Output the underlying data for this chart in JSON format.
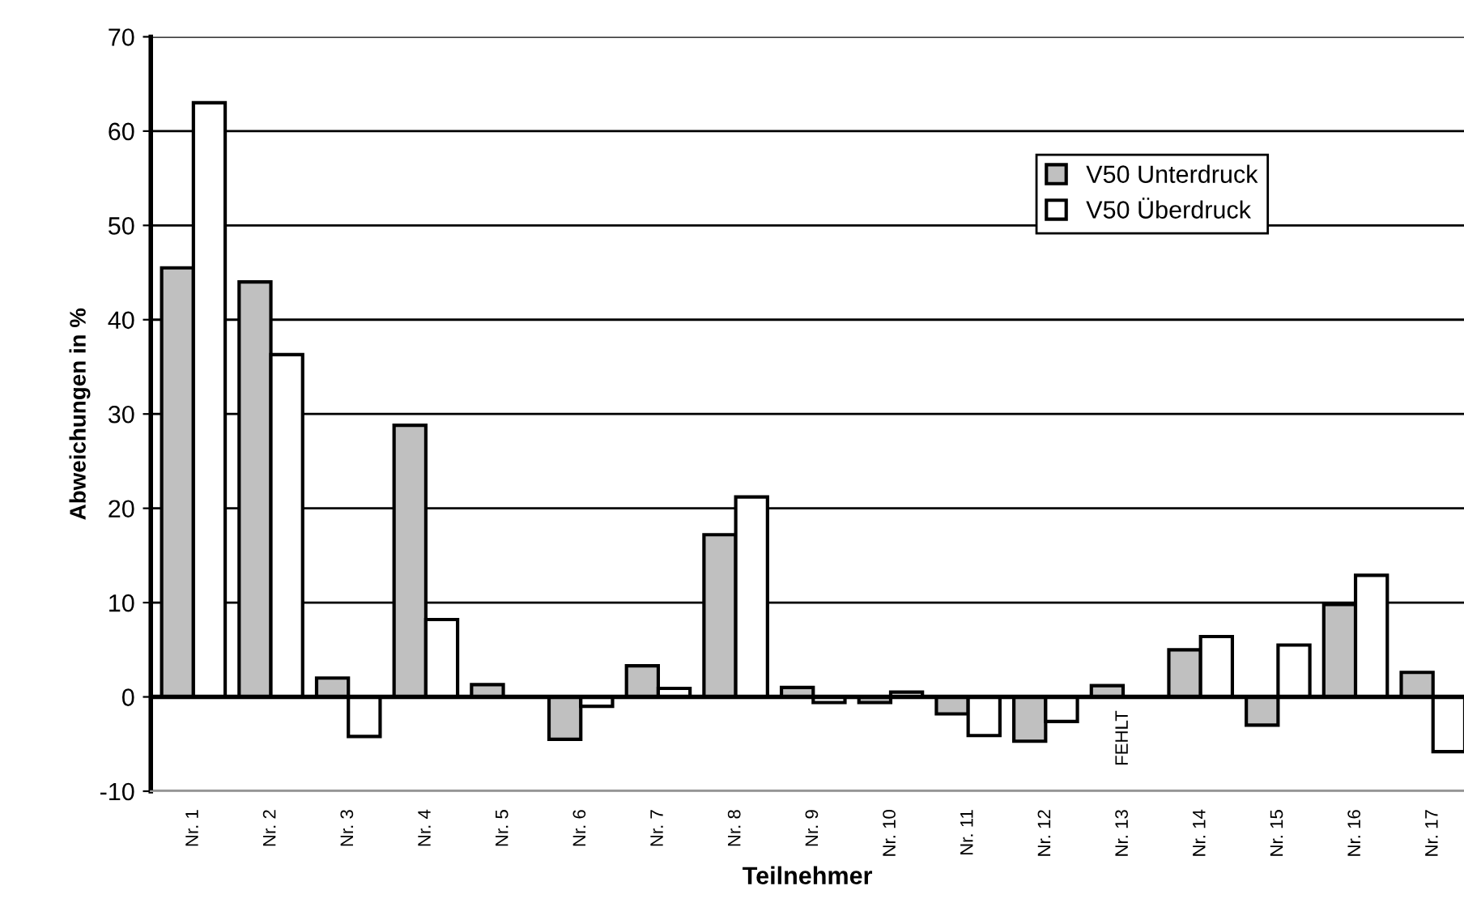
{
  "chart_data": {
    "type": "bar",
    "xlabel": "Teilnehmer",
    "ylabel": "Abweichungen in %",
    "categories": [
      "Nr. 1",
      "Nr. 2",
      "Nr. 3",
      "Nr. 4",
      "Nr. 5",
      "Nr. 6",
      "Nr. 7",
      "Nr. 8",
      "Nr. 9",
      "Nr. 10",
      "Nr. 11",
      "Nr. 12",
      "Nr. 13",
      "Nr. 14",
      "Nr. 15",
      "Nr. 16",
      "Nr. 17"
    ],
    "series": [
      {
        "name": "V50 Unterdruck",
        "color": "#c0c0c0",
        "values": [
          45.5,
          44,
          2,
          28.8,
          1.3,
          -4.5,
          3.3,
          17.2,
          1,
          -0.6,
          -1.8,
          -4.7,
          1.2,
          5,
          -3,
          9.8,
          2.6
        ]
      },
      {
        "name": "V50 Überdruck",
        "color": "#ffffff",
        "values": [
          63,
          36.3,
          -4.2,
          8.2,
          null,
          -1,
          0.9,
          21.2,
          -0.6,
          0.5,
          -4.1,
          -2.6,
          null,
          6.4,
          5.5,
          12.9,
          -5.8
        ]
      }
    ],
    "annotations": [
      {
        "text": "FEHLT",
        "x": "Nr. 13",
        "y": 0
      }
    ],
    "ylim": [
      -10,
      70
    ],
    "yticks": [
      -10,
      0,
      10,
      20,
      30,
      40,
      50,
      60,
      70
    ],
    "grid": "y",
    "legend": "top right"
  }
}
